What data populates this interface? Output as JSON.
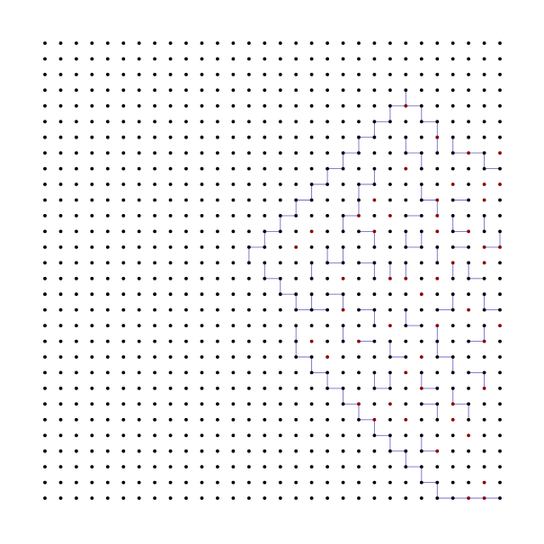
{
  "diagram": {
    "type": "lattice-path-diagram",
    "grid": {
      "columns": 30,
      "rows": 30
    },
    "colors": {
      "background": "#ffffff",
      "default_point": "#000000",
      "highlight_point": "#8b0000",
      "path_line": "#6f6fd6"
    },
    "highlight_points": [
      [
        23,
        4
      ],
      [
        25,
        6
      ],
      [
        27,
        7
      ],
      [
        29,
        7
      ],
      [
        23,
        8
      ],
      [
        26,
        9
      ],
      [
        28,
        9
      ],
      [
        29,
        9
      ],
      [
        21,
        10
      ],
      [
        25,
        10
      ],
      [
        28,
        10
      ],
      [
        20,
        11
      ],
      [
        22,
        11
      ],
      [
        25,
        11
      ],
      [
        17,
        12
      ],
      [
        21,
        12
      ],
      [
        25,
        12
      ],
      [
        27,
        12
      ],
      [
        16,
        13
      ],
      [
        28,
        13
      ],
      [
        29,
        13
      ],
      [
        26,
        14
      ],
      [
        28,
        14
      ],
      [
        19,
        15
      ],
      [
        22,
        15
      ],
      [
        23,
        15
      ],
      [
        25,
        15
      ],
      [
        24,
        16
      ],
      [
        19,
        17
      ],
      [
        27,
        17
      ],
      [
        22,
        18
      ],
      [
        25,
        18
      ],
      [
        29,
        18
      ],
      [
        17,
        19
      ],
      [
        20,
        19
      ],
      [
        28,
        19
      ],
      [
        18,
        20
      ],
      [
        24,
        20
      ],
      [
        23,
        21
      ],
      [
        24,
        22
      ],
      [
        28,
        22
      ],
      [
        20,
        23
      ],
      [
        22,
        23
      ],
      [
        26,
        23
      ],
      [
        21,
        24
      ],
      [
        23,
        24
      ],
      [
        26,
        24
      ],
      [
        27,
        25
      ],
      [
        25,
        26
      ],
      [
        28,
        28
      ],
      [
        27,
        29
      ],
      [
        28,
        29
      ]
    ],
    "path_segments": [
      [
        23,
        3,
        23,
        4
      ],
      [
        22,
        4,
        24,
        4
      ],
      [
        24,
        4,
        24,
        5
      ],
      [
        22,
        4,
        22,
        5
      ],
      [
        21,
        5,
        22,
        5
      ],
      [
        24,
        5,
        25,
        5
      ],
      [
        25,
        5,
        25,
        6
      ],
      [
        21,
        5,
        21,
        6
      ],
      [
        20,
        6,
        21,
        6
      ],
      [
        25,
        6,
        25,
        7
      ],
      [
        26,
        6,
        26,
        7
      ],
      [
        26,
        7,
        27,
        7
      ],
      [
        27,
        7,
        28,
        7
      ],
      [
        28,
        7,
        28,
        8
      ],
      [
        23,
        6,
        23,
        7
      ],
      [
        23,
        7,
        24,
        7
      ],
      [
        24,
        7,
        24,
        8
      ],
      [
        19,
        7,
        20,
        7
      ],
      [
        20,
        6,
        20,
        7
      ],
      [
        19,
        7,
        19,
        8
      ],
      [
        18,
        8,
        19,
        8
      ],
      [
        28,
        8,
        29,
        8
      ],
      [
        18,
        8,
        18,
        9
      ],
      [
        17,
        9,
        18,
        9
      ],
      [
        17,
        9,
        17,
        10
      ],
      [
        16,
        10,
        17,
        10
      ],
      [
        21,
        8,
        21,
        9
      ],
      [
        20,
        9,
        21,
        9
      ],
      [
        24,
        9,
        24,
        10
      ],
      [
        24,
        10,
        25,
        10
      ],
      [
        25,
        10,
        25,
        11
      ],
      [
        20,
        9,
        20,
        10
      ],
      [
        20,
        10,
        20,
        11
      ],
      [
        26,
        10,
        27,
        10
      ],
      [
        16,
        10,
        16,
        11
      ],
      [
        15,
        11,
        16,
        11
      ],
      [
        15,
        11,
        15,
        12
      ],
      [
        19,
        11,
        20,
        11
      ],
      [
        19,
        11,
        19,
        12
      ],
      [
        23,
        11,
        24,
        11
      ],
      [
        26,
        11,
        26,
        12
      ],
      [
        26,
        12,
        27,
        12
      ],
      [
        28,
        11,
        28,
        12
      ],
      [
        14,
        12,
        15,
        12
      ],
      [
        14,
        12,
        14,
        13
      ],
      [
        20,
        12,
        21,
        12
      ],
      [
        21,
        12,
        21,
        13
      ],
      [
        23,
        12,
        23,
        13
      ],
      [
        23,
        13,
        24,
        13
      ],
      [
        24,
        12,
        24,
        13
      ],
      [
        13,
        13,
        14,
        13
      ],
      [
        18,
        13,
        18,
        14
      ],
      [
        18,
        14,
        19,
        14
      ],
      [
        19,
        13,
        19,
        14
      ],
      [
        25,
        13,
        25,
        14
      ],
      [
        26,
        13,
        27,
        13
      ],
      [
        28,
        13,
        29,
        13
      ],
      [
        29,
        12,
        29,
        13
      ],
      [
        13,
        13,
        13,
        14
      ],
      [
        14,
        14,
        14,
        15
      ],
      [
        14,
        15,
        15,
        15
      ],
      [
        15,
        15,
        15,
        16
      ],
      [
        17,
        14,
        17,
        15
      ],
      [
        20,
        14,
        21,
        14
      ],
      [
        21,
        14,
        21,
        15
      ],
      [
        22,
        14,
        22,
        15
      ],
      [
        23,
        14,
        23,
        15
      ],
      [
        26,
        14,
        26,
        15
      ],
      [
        27,
        14,
        27,
        15
      ],
      [
        27,
        15,
        28,
        15
      ],
      [
        15,
        16,
        16,
        16
      ],
      [
        16,
        16,
        16,
        17
      ],
      [
        16,
        17,
        17,
        17
      ],
      [
        17,
        16,
        17,
        17
      ],
      [
        19,
        16,
        19,
        17
      ],
      [
        18,
        16,
        19,
        16
      ],
      [
        26,
        16,
        26,
        17
      ],
      [
        25,
        17,
        26,
        17
      ],
      [
        28,
        16,
        28,
        17
      ],
      [
        28,
        17,
        29,
        17
      ],
      [
        17,
        17,
        18,
        17
      ],
      [
        16,
        18,
        16,
        19
      ],
      [
        19,
        18,
        19,
        19
      ],
      [
        20,
        17,
        21,
        17
      ],
      [
        21,
        17,
        21,
        18
      ],
      [
        23,
        17,
        23,
        18
      ],
      [
        23,
        18,
        24,
        18
      ],
      [
        25,
        18,
        25,
        19
      ],
      [
        28,
        18,
        28,
        19
      ],
      [
        16,
        19,
        16,
        20
      ],
      [
        16,
        20,
        17,
        20
      ],
      [
        17,
        20,
        17,
        21
      ],
      [
        20,
        19,
        21,
        19
      ],
      [
        22,
        19,
        22,
        20
      ],
      [
        22,
        20,
        23,
        20
      ],
      [
        25,
        19,
        25,
        20
      ],
      [
        25,
        20,
        26,
        20
      ],
      [
        26,
        20,
        26,
        21
      ],
      [
        27,
        19,
        28,
        19
      ],
      [
        17,
        21,
        18,
        21
      ],
      [
        18,
        21,
        18,
        22
      ],
      [
        18,
        22,
        19,
        22
      ],
      [
        19,
        22,
        19,
        23
      ],
      [
        21,
        21,
        21,
        22
      ],
      [
        21,
        22,
        22,
        22
      ],
      [
        22,
        21,
        22,
        22
      ],
      [
        24,
        21,
        24,
        22
      ],
      [
        24,
        22,
        25,
        22
      ],
      [
        27,
        21,
        28,
        21
      ],
      [
        28,
        21,
        28,
        22
      ],
      [
        19,
        23,
        20,
        23
      ],
      [
        20,
        23,
        20,
        24
      ],
      [
        20,
        24,
        21,
        24
      ],
      [
        21,
        24,
        21,
        25
      ],
      [
        24,
        23,
        25,
        23
      ],
      [
        25,
        23,
        25,
        24
      ],
      [
        26,
        22,
        26,
        23
      ],
      [
        26,
        23,
        27,
        23
      ],
      [
        27,
        23,
        27,
        24
      ],
      [
        21,
        25,
        22,
        25
      ],
      [
        22,
        25,
        22,
        26
      ],
      [
        22,
        26,
        23,
        26
      ],
      [
        23,
        26,
        23,
        27
      ],
      [
        24,
        25,
        24,
        26
      ],
      [
        24,
        26,
        25,
        26
      ],
      [
        23,
        27,
        24,
        27
      ],
      [
        24,
        27,
        24,
        28
      ],
      [
        24,
        28,
        25,
        28
      ],
      [
        25,
        28,
        25,
        29
      ],
      [
        25,
        29,
        26,
        29
      ],
      [
        26,
        29,
        27,
        29
      ],
      [
        27,
        29,
        28,
        29
      ],
      [
        28,
        29,
        29,
        29
      ]
    ]
  }
}
